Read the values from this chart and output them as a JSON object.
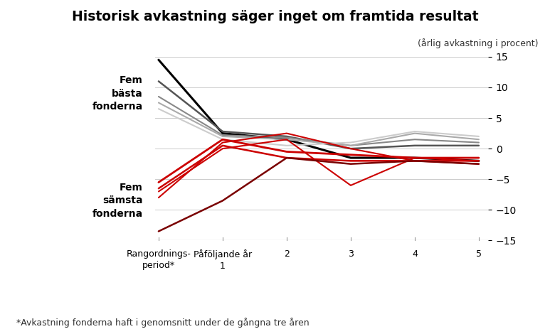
{
  "title": "Historisk avkastning säger inget om framtida resultat",
  "subtitle": "(årlig avkastning i procent)",
  "footnote": "*Avkastning fonderna haft i genomsnitt under de gångna tre åren",
  "label_fem_basta": "Fem\nbästa\nfonderna",
  "label_fem_samsta": "Fem\nsämsta\nfonderna",
  "ylim": [
    -15,
    15
  ],
  "yticks": [
    -15,
    -10,
    -5,
    0,
    5,
    10,
    15
  ],
  "background_color": "#ffffff",
  "best_lines": [
    {
      "color": "#000000",
      "lw": 2.2,
      "data": [
        14.5,
        2.5,
        1.5,
        -1.5,
        -1.5,
        -2.0
      ]
    },
    {
      "color": "#555555",
      "lw": 1.8,
      "data": [
        11.0,
        2.8,
        2.0,
        0.0,
        0.5,
        0.5
      ]
    },
    {
      "color": "#888888",
      "lw": 1.5,
      "data": [
        8.5,
        2.2,
        1.8,
        0.5,
        1.5,
        1.0
      ]
    },
    {
      "color": "#aaaaaa",
      "lw": 1.5,
      "data": [
        7.5,
        2.0,
        1.5,
        0.5,
        2.5,
        1.5
      ]
    },
    {
      "color": "#cccccc",
      "lw": 1.5,
      "data": [
        6.5,
        1.5,
        0.5,
        1.0,
        2.8,
        2.0
      ]
    }
  ],
  "worst_lines": [
    {
      "color": "#cc0000",
      "lw": 2.0,
      "data": [
        -5.5,
        1.5,
        -0.5,
        -1.0,
        -1.5,
        -1.5
      ]
    },
    {
      "color": "#cc0000",
      "lw": 1.8,
      "data": [
        -6.5,
        0.5,
        -1.5,
        -2.0,
        -2.0,
        -2.0
      ]
    },
    {
      "color": "#cc0000",
      "lw": 1.5,
      "data": [
        -7.0,
        0.0,
        1.5,
        -6.0,
        -1.5,
        -2.0
      ]
    },
    {
      "color": "#cc0000",
      "lw": 1.5,
      "data": [
        -8.0,
        1.0,
        2.5,
        0.0,
        -2.0,
        -2.5
      ]
    },
    {
      "color": "#7a0000",
      "lw": 1.8,
      "data": [
        -13.5,
        -8.5,
        -1.5,
        -2.5,
        -2.0,
        -2.5
      ]
    }
  ]
}
